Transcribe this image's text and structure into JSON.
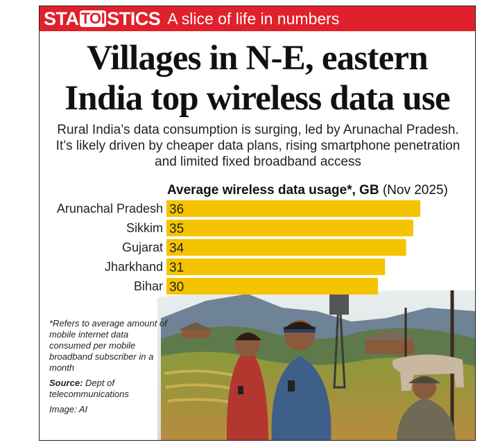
{
  "banner": {
    "brand_pre": "STA",
    "brand_mid": "TOI",
    "brand_post": "STICS",
    "tagline": "A slice of life in numbers",
    "color": "#e0202a"
  },
  "headline": {
    "line1": "Villages in N-E, eastern",
    "line2": "India top wireless data use"
  },
  "subtitle": "Rural India’s data consumption is surging, led by Arunachal Pradesh. It’s likely driven by cheaper data plans, rising smartphone penetration and limited fixed broadband access",
  "chart_data": {
    "type": "bar",
    "orientation": "horizontal",
    "title": "Average wireless data usage*, GB",
    "title_suffix": "(Nov 2025)",
    "categories": [
      "Arunachal Pradesh",
      "Sikkim",
      "Gujarat",
      "Jharkhand",
      "Bihar"
    ],
    "values": [
      36,
      35,
      34,
      31,
      30
    ],
    "unit": "GB",
    "bar_color": "#f5c400",
    "xlim": [
      0,
      40
    ]
  },
  "footnote": {
    "note": "*Refers to average amount of mobile internet data consumed per mobile broadband subscriber in a month",
    "source_label": "Source:",
    "source_text": "Dept of telecommunications",
    "image_credit": "Image: AI"
  }
}
